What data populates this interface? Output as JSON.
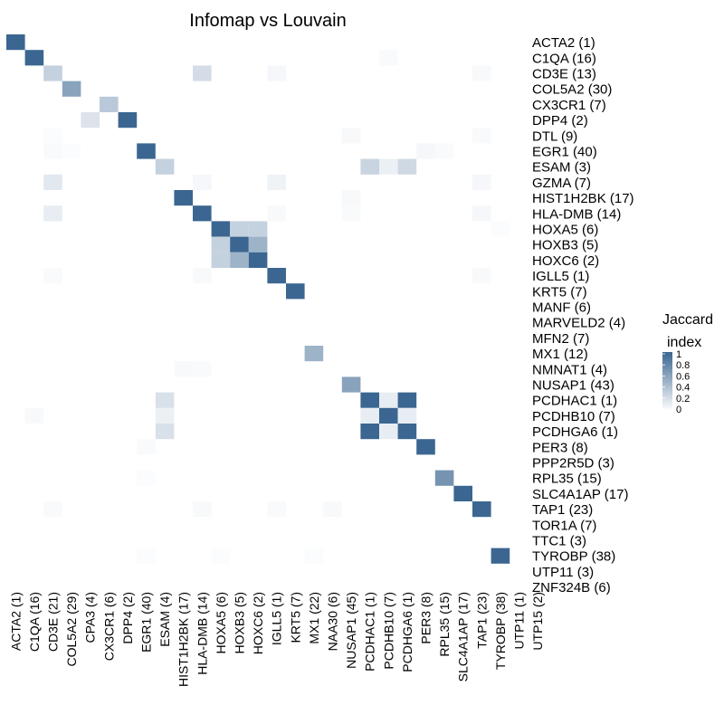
{
  "chart_data": {
    "type": "heatmap",
    "title": "Infomap vs Louvain",
    "legend": {
      "title_line1": "Jaccard",
      "title_line2": "index",
      "ticks": [
        "1",
        "0.8",
        "0.6",
        "0.4",
        "0.2",
        "0"
      ],
      "range": [
        0,
        1
      ],
      "position": "right"
    },
    "colors": {
      "high": "#3b6691",
      "low": "#ffffff"
    },
    "x_categories": [
      "ACTA2 (1)",
      "C1QA (16)",
      "CD3E (21)",
      "COL5A2 (29)",
      "CPA3 (4)",
      "CX3CR1 (6)",
      "DPP4 (2)",
      "EGR1 (40)",
      "ESAM (4)",
      "HIST1H2BK (17)",
      "HLA-DMB (14)",
      "HOXA5 (6)",
      "HOXB3 (5)",
      "HOXC6 (2)",
      "IGLL5 (1)",
      "KRT5 (7)",
      "MX1 (22)",
      "NAA30 (6)",
      "NUSAP1 (45)",
      "PCDHAC1 (1)",
      "PCDHB10 (7)",
      "PCDHGA6 (1)",
      "PER3 (8)",
      "RPL35 (15)",
      "SLC4A1AP (17)",
      "TAP1 (23)",
      "TYROBP (38)",
      "UTP11 (1)",
      "UTP15 (2)"
    ],
    "y_categories": [
      "ACTA2 (1)",
      "C1QA (16)",
      "CD3E (13)",
      "COL5A2 (30)",
      "CX3CR1 (7)",
      "DPP4 (2)",
      "DTL (9)",
      "EGR1 (40)",
      "ESAM (3)",
      "GZMA (7)",
      "HIST1H2BK (17)",
      "HLA-DMB (14)",
      "HOXA5 (6)",
      "HOXB3 (5)",
      "HOXC6 (2)",
      "IGLL5 (1)",
      "KRT5 (7)",
      "MANF (6)",
      "MARVELD2 (4)",
      "MFN2 (7)",
      "MX1 (12)",
      "NMNAT1 (4)",
      "NUSAP1 (43)",
      "PCDHAC1 (1)",
      "PCDHB10 (7)",
      "PCDHGA6 (1)",
      "PER3 (8)",
      "PPP2R5D (3)",
      "RPL35 (15)",
      "SLC4A1AP (17)",
      "TAP1 (23)",
      "TOR1A (7)",
      "TTC1 (3)",
      "TYROBP (38)",
      "UTP11 (3)",
      "ZNF324B (6)"
    ],
    "cells": [
      [
        0,
        0,
        1.0
      ],
      [
        1,
        1,
        1.0
      ],
      [
        1,
        20,
        0.03
      ],
      [
        2,
        2,
        0.3
      ],
      [
        2,
        10,
        0.22
      ],
      [
        2,
        14,
        0.05
      ],
      [
        2,
        25,
        0.04
      ],
      [
        3,
        3,
        0.6
      ],
      [
        4,
        5,
        0.35
      ],
      [
        5,
        4,
        0.18
      ],
      [
        5,
        6,
        1.0
      ],
      [
        6,
        2,
        0.02
      ],
      [
        6,
        18,
        0.04
      ],
      [
        6,
        25,
        0.03
      ],
      [
        7,
        2,
        0.03
      ],
      [
        7,
        3,
        0.02
      ],
      [
        7,
        7,
        1.0
      ],
      [
        7,
        22,
        0.05
      ],
      [
        7,
        23,
        0.03
      ],
      [
        8,
        8,
        0.3
      ],
      [
        8,
        19,
        0.28
      ],
      [
        8,
        20,
        0.1
      ],
      [
        8,
        21,
        0.25
      ],
      [
        9,
        2,
        0.15
      ],
      [
        9,
        10,
        0.05
      ],
      [
        9,
        14,
        0.08
      ],
      [
        9,
        25,
        0.05
      ],
      [
        10,
        9,
        1.0
      ],
      [
        10,
        18,
        0.04
      ],
      [
        11,
        2,
        0.12
      ],
      [
        11,
        10,
        1.0
      ],
      [
        11,
        14,
        0.04
      ],
      [
        11,
        18,
        0.03
      ],
      [
        11,
        25,
        0.05
      ],
      [
        12,
        11,
        1.0
      ],
      [
        12,
        12,
        0.3
      ],
      [
        12,
        13,
        0.3
      ],
      [
        12,
        26,
        0.02
      ],
      [
        13,
        11,
        0.3
      ],
      [
        13,
        12,
        1.0
      ],
      [
        13,
        13,
        0.5
      ],
      [
        14,
        11,
        0.3
      ],
      [
        14,
        12,
        0.5
      ],
      [
        14,
        13,
        1.0
      ],
      [
        15,
        2,
        0.03
      ],
      [
        15,
        10,
        0.04
      ],
      [
        15,
        14,
        1.0
      ],
      [
        15,
        25,
        0.04
      ],
      [
        16,
        15,
        1.0
      ],
      [
        20,
        16,
        0.5
      ],
      [
        21,
        9,
        0.04
      ],
      [
        21,
        10,
        0.03
      ],
      [
        22,
        18,
        0.6
      ],
      [
        23,
        8,
        0.2
      ],
      [
        23,
        19,
        1.0
      ],
      [
        23,
        20,
        0.12
      ],
      [
        23,
        21,
        1.0
      ],
      [
        24,
        1,
        0.04
      ],
      [
        24,
        8,
        0.1
      ],
      [
        24,
        19,
        0.12
      ],
      [
        24,
        20,
        1.0
      ],
      [
        24,
        21,
        0.12
      ],
      [
        25,
        8,
        0.2
      ],
      [
        25,
        19,
        1.0
      ],
      [
        25,
        20,
        0.12
      ],
      [
        25,
        21,
        1.0
      ],
      [
        26,
        7,
        0.03
      ],
      [
        26,
        22,
        1.0
      ],
      [
        28,
        7,
        0.02
      ],
      [
        28,
        23,
        0.7
      ],
      [
        29,
        24,
        1.0
      ],
      [
        30,
        2,
        0.03
      ],
      [
        30,
        10,
        0.04
      ],
      [
        30,
        14,
        0.03
      ],
      [
        30,
        17,
        0.04
      ],
      [
        30,
        25,
        1.0
      ],
      [
        33,
        7,
        0.02
      ],
      [
        33,
        11,
        0.02
      ],
      [
        33,
        16,
        0.02
      ],
      [
        33,
        26,
        1.0
      ]
    ]
  }
}
